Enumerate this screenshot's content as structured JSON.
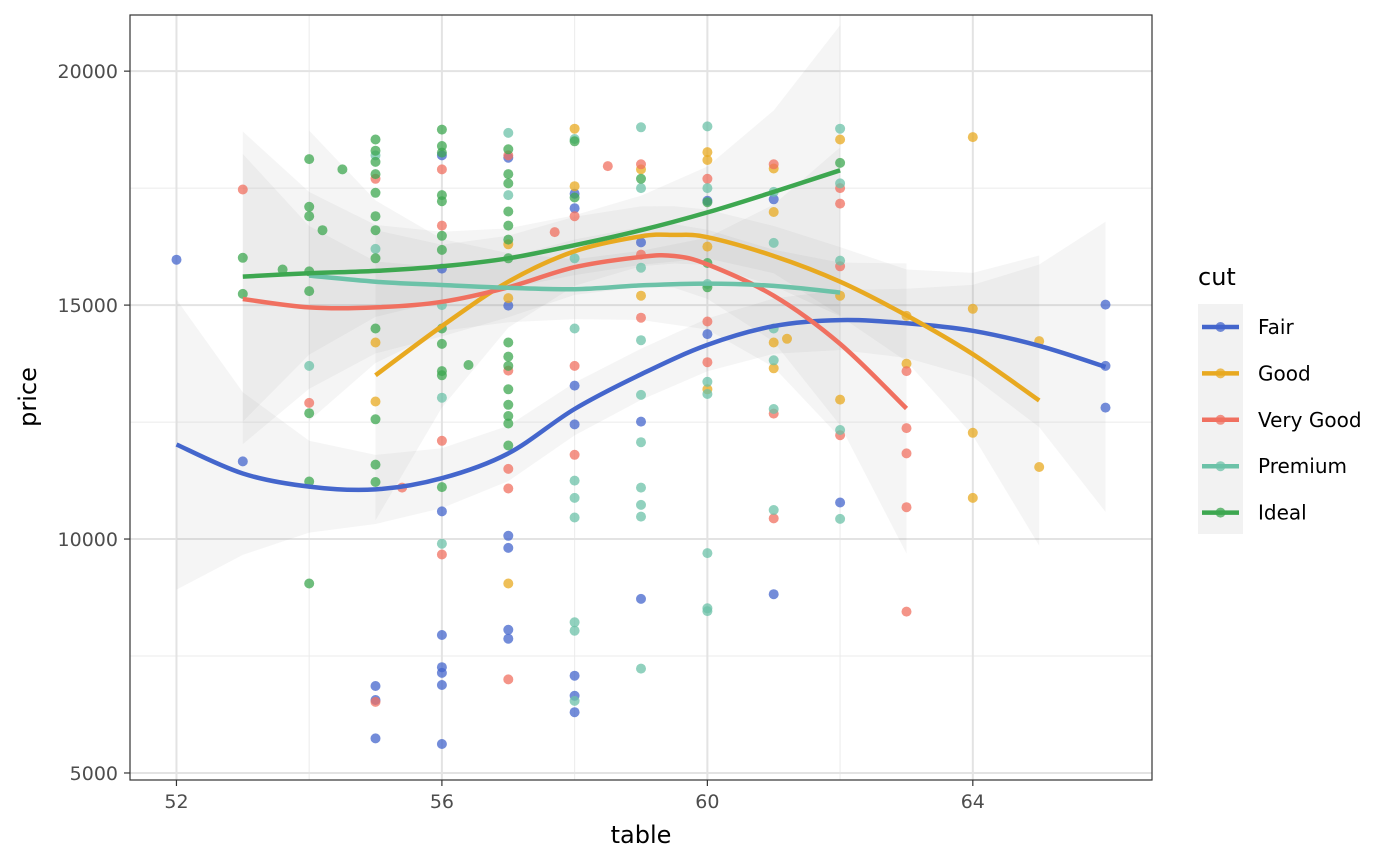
{
  "chart_data": {
    "type": "scatter",
    "xlabel": "table",
    "ylabel": "price",
    "xlim": [
      51.3,
      66.7
    ],
    "ylim": [
      4850,
      21200
    ],
    "x_ticks": [
      52,
      56,
      60,
      64
    ],
    "x_tick_labels": [
      "52",
      "56",
      "60",
      "64"
    ],
    "y_ticks": [
      5000,
      10000,
      15000,
      20000
    ],
    "y_tick_labels": [
      "5000",
      "10000",
      "15000",
      "20000"
    ],
    "grid": true,
    "legend_title": "cut",
    "legend_position": "right",
    "overlay": "loess smooth with shaded confidence band per series",
    "series": [
      {
        "name": "Fair",
        "color": "#4466CC",
        "points": [
          [
            52,
            15970
          ],
          [
            53,
            11660
          ],
          [
            55,
            6860
          ],
          [
            55,
            6560
          ],
          [
            55,
            5740
          ],
          [
            56,
            5620
          ],
          [
            56,
            6880
          ],
          [
            56,
            7140
          ],
          [
            56,
            7260
          ],
          [
            56,
            7950
          ],
          [
            56,
            10590
          ],
          [
            56,
            15780
          ],
          [
            56,
            18200
          ],
          [
            57,
            7870
          ],
          [
            57,
            8060
          ],
          [
            57,
            9810
          ],
          [
            57,
            10070
          ],
          [
            57,
            14990
          ],
          [
            57,
            18150
          ],
          [
            58,
            6300
          ],
          [
            58,
            6650
          ],
          [
            58,
            7080
          ],
          [
            58,
            12450
          ],
          [
            58,
            13280
          ],
          [
            58,
            17070
          ],
          [
            58,
            17380
          ],
          [
            59,
            8720
          ],
          [
            59,
            12510
          ],
          [
            59,
            16340
          ],
          [
            60,
            14380
          ],
          [
            60,
            17230
          ],
          [
            61,
            8820
          ],
          [
            61,
            17260
          ],
          [
            62,
            10780
          ],
          [
            66,
            15010
          ],
          [
            66,
            13700
          ],
          [
            66,
            12810
          ]
        ],
        "smooth": [
          [
            52,
            12020
          ],
          [
            53,
            11400
          ],
          [
            54,
            11120
          ],
          [
            55,
            11060
          ],
          [
            56,
            11300
          ],
          [
            57,
            11830
          ],
          [
            58,
            12780
          ],
          [
            59,
            13520
          ],
          [
            60,
            14150
          ],
          [
            61,
            14550
          ],
          [
            62,
            14680
          ],
          [
            63,
            14610
          ],
          [
            64,
            14450
          ],
          [
            65,
            14130
          ],
          [
            66,
            13680
          ]
        ]
      },
      {
        "name": "Good",
        "color": "#E8A920",
        "points": [
          [
            55,
            14200
          ],
          [
            55,
            12940
          ],
          [
            57,
            9050
          ],
          [
            57,
            15150
          ],
          [
            57,
            16300
          ],
          [
            58,
            18770
          ],
          [
            58,
            17540
          ],
          [
            59,
            17900
          ],
          [
            59,
            15200
          ],
          [
            60,
            18270
          ],
          [
            60,
            18100
          ],
          [
            60,
            16250
          ],
          [
            60,
            13200
          ],
          [
            61,
            17920
          ],
          [
            61,
            16990
          ],
          [
            61,
            14200
          ],
          [
            61,
            13650
          ],
          [
            61.2,
            14280
          ],
          [
            62,
            18540
          ],
          [
            62,
            15200
          ],
          [
            62,
            12980
          ],
          [
            63,
            14770
          ],
          [
            63,
            13750
          ],
          [
            64,
            18590
          ],
          [
            64,
            14920
          ],
          [
            64,
            12270
          ],
          [
            64,
            10880
          ],
          [
            65,
            14230
          ],
          [
            65,
            11540
          ]
        ],
        "smooth": [
          [
            55,
            13500
          ],
          [
            56,
            14550
          ],
          [
            57,
            15500
          ],
          [
            58,
            16150
          ],
          [
            59,
            16470
          ],
          [
            59.5,
            16500
          ],
          [
            60,
            16450
          ],
          [
            61,
            16050
          ],
          [
            62,
            15500
          ],
          [
            63,
            14780
          ],
          [
            64,
            13950
          ],
          [
            65,
            12960
          ]
        ]
      },
      {
        "name": "Very Good",
        "color": "#F07060",
        "points": [
          [
            53,
            17470
          ],
          [
            54,
            12910
          ],
          [
            55,
            6520
          ],
          [
            55,
            17700
          ],
          [
            55.4,
            11100
          ],
          [
            56,
            9670
          ],
          [
            56,
            12100
          ],
          [
            56,
            16700
          ],
          [
            56,
            17900
          ],
          [
            57,
            11080
          ],
          [
            57,
            11500
          ],
          [
            57,
            13600
          ],
          [
            57,
            7000
          ],
          [
            57,
            18200
          ],
          [
            57.7,
            16560
          ],
          [
            58,
            11800
          ],
          [
            58,
            13700
          ],
          [
            58,
            16900
          ],
          [
            58.5,
            17970
          ],
          [
            59,
            14730
          ],
          [
            59,
            16080
          ],
          [
            59,
            18010
          ],
          [
            60,
            13780
          ],
          [
            60,
            14650
          ],
          [
            60,
            17700
          ],
          [
            61,
            12680
          ],
          [
            61,
            10440
          ],
          [
            61,
            18010
          ],
          [
            62,
            12220
          ],
          [
            62,
            15830
          ],
          [
            62,
            17170
          ],
          [
            62,
            17500
          ],
          [
            63,
            13590
          ],
          [
            63,
            12370
          ],
          [
            63,
            11830
          ],
          [
            63,
            10680
          ],
          [
            63,
            8450
          ]
        ],
        "smooth": [
          [
            53,
            15130
          ],
          [
            54,
            14950
          ],
          [
            55,
            14950
          ],
          [
            56,
            15070
          ],
          [
            57,
            15380
          ],
          [
            58,
            15810
          ],
          [
            59,
            16030
          ],
          [
            59.5,
            16050
          ],
          [
            60,
            15870
          ],
          [
            61,
            15200
          ],
          [
            62,
            14170
          ],
          [
            63,
            12790
          ]
        ]
      },
      {
        "name": "Premium",
        "color": "#6CC2A8",
        "points": [
          [
            54,
            13700
          ],
          [
            55,
            16200
          ],
          [
            55,
            18200
          ],
          [
            56,
            9900
          ],
          [
            56,
            13020
          ],
          [
            56,
            15000
          ],
          [
            57,
            18680
          ],
          [
            57,
            17350
          ],
          [
            58,
            6540
          ],
          [
            58,
            8040
          ],
          [
            58,
            8220
          ],
          [
            58,
            10460
          ],
          [
            58,
            10880
          ],
          [
            58,
            11250
          ],
          [
            58,
            14500
          ],
          [
            58,
            16000
          ],
          [
            58,
            18550
          ],
          [
            59,
            7230
          ],
          [
            59,
            10480
          ],
          [
            59,
            10730
          ],
          [
            59,
            11100
          ],
          [
            59,
            12070
          ],
          [
            59,
            13080
          ],
          [
            59,
            14250
          ],
          [
            59,
            15800
          ],
          [
            59,
            17500
          ],
          [
            59,
            18800
          ],
          [
            60,
            8460
          ],
          [
            60,
            8520
          ],
          [
            60,
            9700
          ],
          [
            60,
            13100
          ],
          [
            60,
            13360
          ],
          [
            60,
            15450
          ],
          [
            60,
            17500
          ],
          [
            60,
            18820
          ],
          [
            61,
            10620
          ],
          [
            61,
            12780
          ],
          [
            61,
            13820
          ],
          [
            61,
            14500
          ],
          [
            61,
            16330
          ],
          [
            61,
            17420
          ],
          [
            62,
            10430
          ],
          [
            62,
            12330
          ],
          [
            62,
            15950
          ],
          [
            62,
            17600
          ],
          [
            62,
            18770
          ]
        ],
        "smooth": [
          [
            54,
            15630
          ],
          [
            55,
            15500
          ],
          [
            56,
            15430
          ],
          [
            57,
            15370
          ],
          [
            58,
            15340
          ],
          [
            59,
            15420
          ],
          [
            60,
            15460
          ],
          [
            61,
            15410
          ],
          [
            62,
            15270
          ]
        ]
      },
      {
        "name": "Ideal",
        "color": "#3DA750",
        "points": [
          [
            53,
            16010
          ],
          [
            53,
            15240
          ],
          [
            53.6,
            15760
          ],
          [
            54,
            18120
          ],
          [
            54,
            17100
          ],
          [
            54,
            16900
          ],
          [
            54,
            15720
          ],
          [
            54,
            15300
          ],
          [
            54,
            12690
          ],
          [
            54,
            11230
          ],
          [
            54,
            9050
          ],
          [
            54.2,
            16600
          ],
          [
            54.5,
            17900
          ],
          [
            55,
            18540
          ],
          [
            55,
            18300
          ],
          [
            55,
            18060
          ],
          [
            55,
            17800
          ],
          [
            55,
            17400
          ],
          [
            55,
            16900
          ],
          [
            55,
            16600
          ],
          [
            55,
            16000
          ],
          [
            55,
            14500
          ],
          [
            55,
            12560
          ],
          [
            55,
            11590
          ],
          [
            55,
            11220
          ],
          [
            56,
            18750
          ],
          [
            56,
            18400
          ],
          [
            56,
            18260
          ],
          [
            56,
            17350
          ],
          [
            56,
            17220
          ],
          [
            56,
            16480
          ],
          [
            56,
            16180
          ],
          [
            56,
            14500
          ],
          [
            56,
            14170
          ],
          [
            56,
            13590
          ],
          [
            56,
            13500
          ],
          [
            56,
            11110
          ],
          [
            56.4,
            13720
          ],
          [
            57,
            18330
          ],
          [
            57,
            17800
          ],
          [
            57,
            17600
          ],
          [
            57,
            17000
          ],
          [
            57,
            16700
          ],
          [
            57,
            16400
          ],
          [
            57,
            16000
          ],
          [
            57,
            14200
          ],
          [
            57,
            13900
          ],
          [
            57,
            13700
          ],
          [
            57,
            13200
          ],
          [
            57,
            12870
          ],
          [
            57,
            12630
          ],
          [
            57,
            12470
          ],
          [
            57,
            12000
          ],
          [
            58,
            18500
          ],
          [
            58,
            17300
          ],
          [
            59,
            17700
          ],
          [
            60,
            17200
          ],
          [
            60,
            15900
          ],
          [
            60,
            15380
          ],
          [
            62,
            18040
          ]
        ],
        "smooth": [
          [
            53,
            15610
          ],
          [
            54,
            15680
          ],
          [
            55,
            15730
          ],
          [
            56,
            15830
          ],
          [
            57,
            16000
          ],
          [
            58,
            16280
          ],
          [
            59,
            16600
          ],
          [
            60,
            16980
          ],
          [
            61,
            17420
          ],
          [
            62,
            17880
          ]
        ]
      }
    ]
  }
}
